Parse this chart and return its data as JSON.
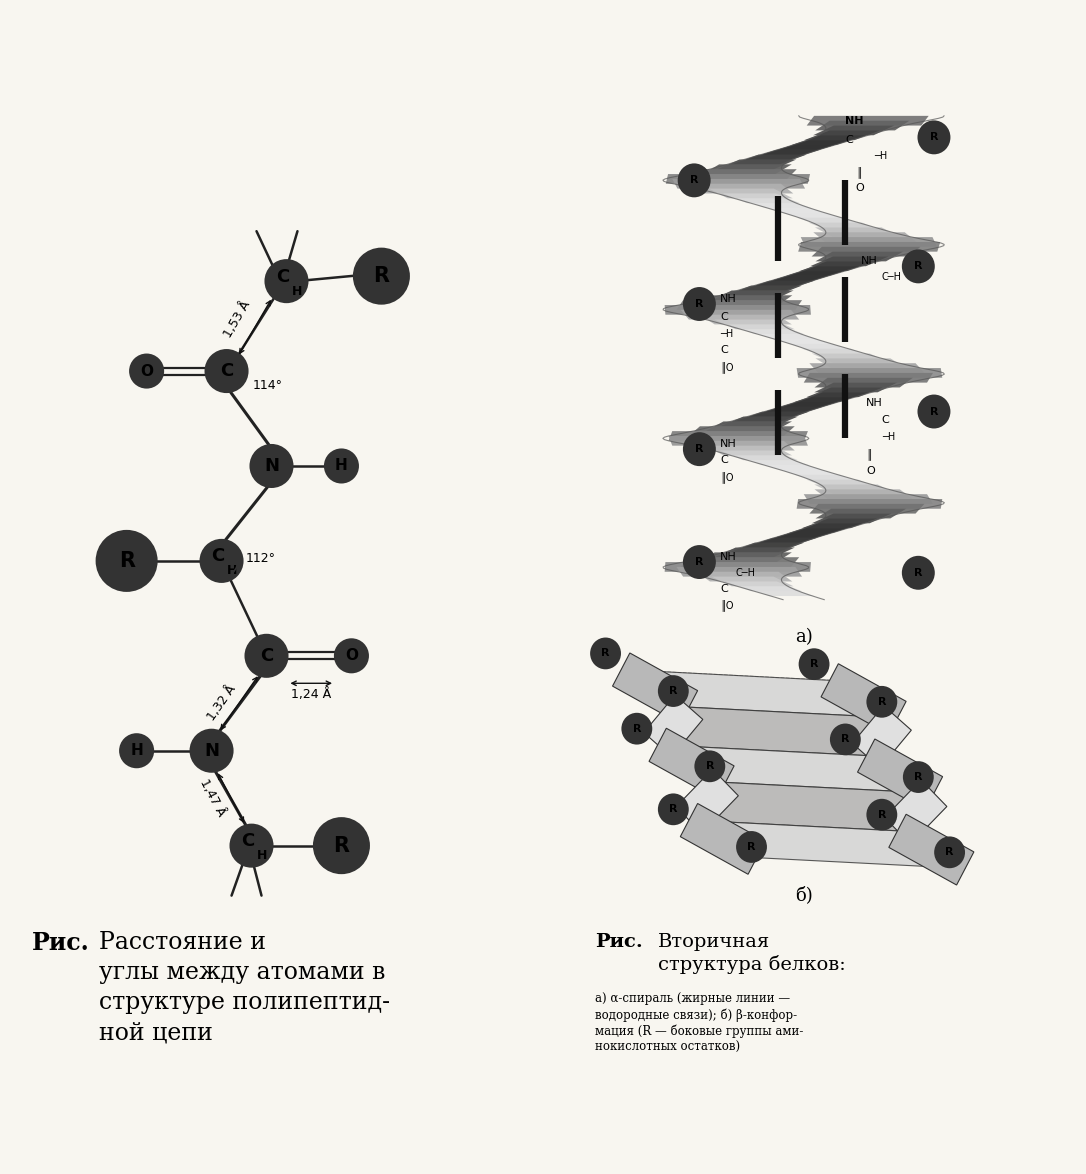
{
  "bg_color": "#f8f6f0",
  "atom_outline": "#333333",
  "bond_color": "#222222",
  "shaded_color": "#aaaaaa",
  "white_color": "#ffffff",
  "left_caption_bold": "Рис.",
  "left_caption_text": "Расстояние и\nуглы между атомами в\nструктуре полипептид-\nной цепи",
  "right_caption_bold": "Рис.",
  "right_caption_title": "Вторичная\nструктура белков:",
  "right_caption_sub": "а) α-спираль (жирные линии —\nводородные связи); б) β-конфор-\nмация (R — боковые группы ами-\nнокислотных остатков)"
}
